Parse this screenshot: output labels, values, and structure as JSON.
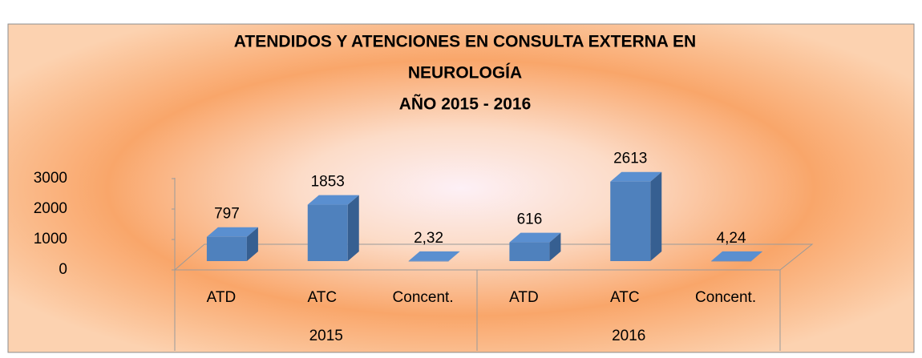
{
  "chart_data": {
    "type": "bar3d",
    "title": [
      "ATENDIDOS Y ATENCIONES EN CONSULTA EXTERNA EN",
      "NEUROLOGÍA"
    ],
    "subtitle": "AÑO 2015 - 2016",
    "categories": [
      "ATD",
      "ATC",
      "Concent.",
      "ATD",
      "ATC",
      "Concent."
    ],
    "groups": [
      "2015",
      "2016"
    ],
    "values": [
      797,
      1853,
      2.32,
      616,
      2613,
      4.24
    ],
    "value_labels": [
      "797",
      "1853",
      "2,32",
      "616",
      "2613",
      "4,24"
    ],
    "color": "#4f81bd",
    "ylim": [
      0,
      3000
    ],
    "yticks": [
      0,
      1000,
      2000,
      3000
    ]
  }
}
